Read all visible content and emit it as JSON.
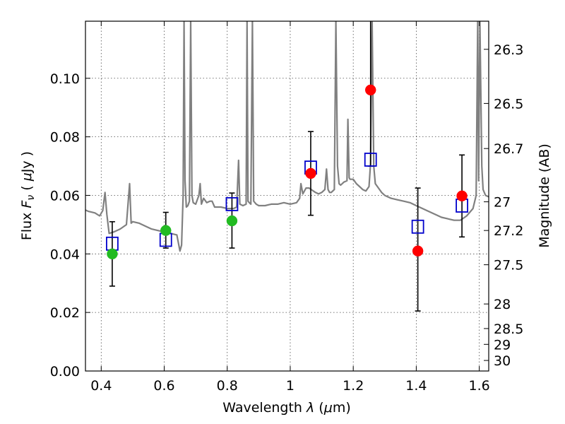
{
  "chart_data": {
    "type": "scatter",
    "xlabel": "Wavelength  λ (μm)",
    "ylabel": "Flux  Fν  ( μJy )",
    "ylabel_right": "Magnitude (AB)",
    "xlim": [
      0.35,
      1.63
    ],
    "ylim": [
      0.0,
      0.1195
    ],
    "x_ticks": [
      "0.4",
      "0.6",
      "0.8",
      "1",
      "1.2",
      "1.4",
      "1.6"
    ],
    "x_tick_values": [
      0.4,
      0.6,
      0.8,
      1.0,
      1.2,
      1.4,
      1.6
    ],
    "y_ticks": [
      "0.00",
      "0.02",
      "0.04",
      "0.06",
      "0.08",
      "0.10"
    ],
    "y_tick_values": [
      0.0,
      0.02,
      0.04,
      0.06,
      0.08,
      0.1
    ],
    "right_ticks": [
      "26.3",
      "26.5",
      "26.7",
      "27",
      "27.2",
      "27.5",
      "28",
      "28.5",
      "29",
      "30"
    ],
    "right_tick_flux": [
      0.1099,
      0.0914,
      0.076,
      0.0578,
      0.048,
      0.0363,
      0.0229,
      0.0145,
      0.0091,
      0.0036
    ],
    "grid": true,
    "series": [
      {
        "marker": "circle",
        "color": "#22bb22",
        "x": [
          0.435,
          0.605,
          0.815
        ],
        "y": [
          0.04,
          0.048,
          0.0513
        ],
        "err_low": [
          0.011,
          0.006,
          0.0093
        ],
        "err_high": [
          0.011,
          0.0062,
          0.0095
        ]
      },
      {
        "marker": "circle",
        "color": "#ff0000",
        "x": [
          1.065,
          1.255,
          1.405,
          1.545
        ],
        "y": [
          0.0675,
          0.096,
          0.041,
          0.0598
        ],
        "err_low": [
          0.0143,
          0.026,
          0.0205,
          0.014
        ],
        "err_high": [
          0.0143,
          0.026,
          0.0215,
          0.014
        ]
      },
      {
        "marker": "open-square",
        "color": "#0000cc",
        "x": [
          0.435,
          0.605,
          0.815,
          1.065,
          1.255,
          1.405,
          1.545
        ],
        "y": [
          0.0435,
          0.0448,
          0.057,
          0.0695,
          0.0722,
          0.0493,
          0.0565
        ]
      },
      {
        "marker": "line",
        "color": "#808080",
        "x": [
          0.35,
          0.36,
          0.38,
          0.395,
          0.405,
          0.412,
          0.418,
          0.425,
          0.44,
          0.46,
          0.48,
          0.49,
          0.495,
          0.5,
          0.52,
          0.54,
          0.56,
          0.58,
          0.6,
          0.62,
          0.64,
          0.65,
          0.655,
          0.66,
          0.663,
          0.666,
          0.67,
          0.675,
          0.68,
          0.684,
          0.688,
          0.692,
          0.7,
          0.71,
          0.714,
          0.718,
          0.725,
          0.735,
          0.745,
          0.752,
          0.76,
          0.78,
          0.8,
          0.82,
          0.83,
          0.836,
          0.84,
          0.85,
          0.86,
          0.863,
          0.866,
          0.87,
          0.875,
          0.88,
          0.884,
          0.888,
          0.892,
          0.9,
          0.92,
          0.94,
          0.96,
          0.98,
          1.0,
          1.02,
          1.03,
          1.034,
          1.04,
          1.05,
          1.06,
          1.08,
          1.09,
          1.1,
          1.11,
          1.115,
          1.12,
          1.125,
          1.13,
          1.14,
          1.145,
          1.15,
          1.155,
          1.16,
          1.17,
          1.18,
          1.183,
          1.187,
          1.19,
          1.2,
          1.21,
          1.22,
          1.23,
          1.24,
          1.25,
          1.255,
          1.26,
          1.265,
          1.27,
          1.28,
          1.29,
          1.3,
          1.32,
          1.34,
          1.36,
          1.38,
          1.4,
          1.42,
          1.44,
          1.46,
          1.48,
          1.5,
          1.52,
          1.54,
          1.56,
          1.58,
          1.59,
          1.595,
          1.598,
          1.602,
          1.608,
          1.612,
          1.62,
          1.63
        ],
        "y": [
          0.055,
          0.0545,
          0.054,
          0.053,
          0.0548,
          0.061,
          0.0535,
          0.047,
          0.0475,
          0.0485,
          0.05,
          0.064,
          0.0505,
          0.051,
          0.0505,
          0.0495,
          0.0485,
          0.048,
          0.0475,
          0.047,
          0.0465,
          0.041,
          0.043,
          0.06,
          0.1195,
          0.065,
          0.056,
          0.0565,
          0.058,
          0.1195,
          0.06,
          0.0575,
          0.057,
          0.06,
          0.064,
          0.057,
          0.059,
          0.0575,
          0.058,
          0.058,
          0.056,
          0.056,
          0.0555,
          0.0555,
          0.056,
          0.072,
          0.057,
          0.0565,
          0.057,
          0.1195,
          0.058,
          0.0575,
          0.057,
          0.1195,
          0.058,
          0.0575,
          0.057,
          0.0565,
          0.0565,
          0.057,
          0.057,
          0.0575,
          0.057,
          0.0575,
          0.059,
          0.064,
          0.0605,
          0.0625,
          0.0625,
          0.061,
          0.0605,
          0.061,
          0.062,
          0.069,
          0.062,
          0.061,
          0.061,
          0.062,
          0.1195,
          0.07,
          0.064,
          0.0635,
          0.0645,
          0.065,
          0.086,
          0.066,
          0.0655,
          0.0655,
          0.064,
          0.063,
          0.062,
          0.0615,
          0.063,
          0.071,
          0.1195,
          0.07,
          0.064,
          0.0625,
          0.061,
          0.06,
          0.059,
          0.0585,
          0.058,
          0.0575,
          0.0565,
          0.0555,
          0.0545,
          0.0535,
          0.0525,
          0.052,
          0.0515,
          0.0515,
          0.053,
          0.0555,
          0.06,
          0.1195,
          0.065,
          0.1195,
          0.07,
          0.062,
          0.06,
          0.0595
        ]
      }
    ]
  }
}
